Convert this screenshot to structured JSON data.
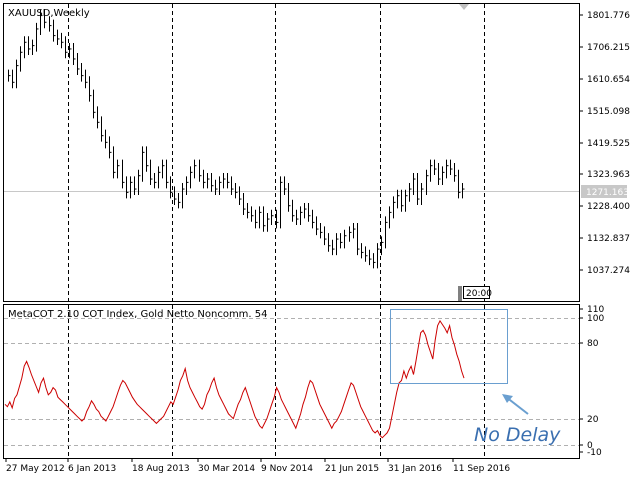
{
  "window": {
    "symbol_title": "XAUUSD,Weekly",
    "time_marker": "20:00"
  },
  "price_axis": {
    "ticks": [
      "1801.776",
      "1706.215",
      "1610.654",
      "1515.098",
      "1419.525",
      "1323.963",
      "1228.400",
      "1132.837",
      "1037.274"
    ],
    "current_price": "1271.163"
  },
  "indicator": {
    "title": "MetaCOT 2.10 COT Index, Gold Netto Noncomm. 54",
    "ticks": [
      "110",
      "100",
      "80",
      "20",
      "0",
      "-10"
    ]
  },
  "time_axis": {
    "labels": [
      "27 May 2012",
      "6 Jan 2013",
      "18 Aug 2013",
      "30 Mar 2014",
      "9 Nov 2014",
      "21 Jun 2015",
      "31 Jan 2016",
      "11 Sep 2016"
    ]
  },
  "annotation": {
    "text": "No Delay",
    "color": "#3a6fb0"
  },
  "colors": {
    "indicator_line": "#cc0000",
    "bars": "#000000",
    "highlight_box": "#6a9fd0"
  },
  "chart_data": [
    {
      "type": "line",
      "title": "XAUUSD,Weekly",
      "series": [
        {
          "name": "XAUUSD",
          "values": [
            1620,
            1600,
            1650,
            1690,
            1720,
            1700,
            1710,
            1760,
            1800,
            1780,
            1770,
            1740,
            1730,
            1720,
            1690,
            1700,
            1670,
            1640,
            1620,
            1600,
            1560,
            1510,
            1480,
            1440,
            1420,
            1390,
            1330,
            1350,
            1300,
            1270,
            1300,
            1280,
            1320,
            1390,
            1350,
            1310,
            1300,
            1330,
            1350,
            1300,
            1270,
            1250,
            1240,
            1280,
            1300,
            1330,
            1350,
            1320,
            1300,
            1310,
            1290,
            1280,
            1300,
            1310,
            1300,
            1280,
            1270,
            1250,
            1220,
            1210,
            1200,
            1180,
            1210,
            1170,
            1190,
            1200,
            1180,
            1300,
            1280,
            1230,
            1200,
            1190,
            1210,
            1220,
            1200,
            1180,
            1160,
            1150,
            1130,
            1110,
            1100,
            1130,
            1120,
            1140,
            1150,
            1160,
            1100,
            1090,
            1080,
            1070,
            1060,
            1100,
            1120,
            1180,
            1210,
            1240,
            1260,
            1230,
            1260,
            1280,
            1310,
            1250,
            1280,
            1320,
            1350,
            1340,
            1310,
            1330,
            1350,
            1340,
            1320,
            1270,
            1280
          ]
        }
      ]
    },
    {
      "type": "line",
      "title": "MetaCOT 2.10 COT Index, Gold Netto Noncomm. 54",
      "ylim": [
        -10,
        110
      ],
      "series": [
        {
          "name": "COT Index",
          "values": [
            30,
            28,
            32,
            27,
            35,
            38,
            45,
            52,
            62,
            66,
            61,
            55,
            50,
            45,
            40,
            48,
            52,
            44,
            38,
            40,
            44,
            42,
            36,
            34,
            32,
            30,
            28,
            26,
            24,
            22,
            20,
            18,
            16,
            18,
            24,
            28,
            33,
            30,
            26,
            24,
            20,
            18,
            16,
            20,
            24,
            28,
            34,
            40,
            46,
            50,
            48,
            44,
            40,
            36,
            33,
            30,
            28,
            26,
            24,
            22,
            20,
            18,
            16,
            14,
            16,
            18,
            20,
            24,
            28,
            32,
            30,
            36,
            42,
            50,
            54,
            60,
            50,
            44,
            40,
            36,
            32,
            28,
            26,
            30,
            38,
            42,
            48,
            52,
            44,
            38,
            34,
            30,
            26,
            22,
            20,
            18,
            24,
            30,
            34,
            40,
            44,
            38,
            32,
            26,
            20,
            16,
            12,
            10,
            14,
            18,
            24,
            30,
            36,
            44,
            40,
            34,
            30,
            26,
            22,
            18,
            14,
            10,
            16,
            22,
            30,
            36,
            44,
            50,
            48,
            42,
            36,
            30,
            26,
            22,
            18,
            14,
            10,
            14,
            16,
            20,
            24,
            30,
            36,
            42,
            48,
            46,
            40,
            34,
            28,
            24,
            20,
            16,
            12,
            8,
            6,
            8,
            4,
            2,
            4,
            6,
            10,
            20,
            30,
            40,
            48,
            50,
            58,
            52,
            58,
            62,
            55,
            66,
            78,
            90,
            92,
            88,
            80,
            74,
            68,
            84,
            96,
            100,
            97,
            94,
            90,
            96,
            86,
            80,
            72,
            66,
            58,
            52
          ]
        }
      ]
    }
  ]
}
